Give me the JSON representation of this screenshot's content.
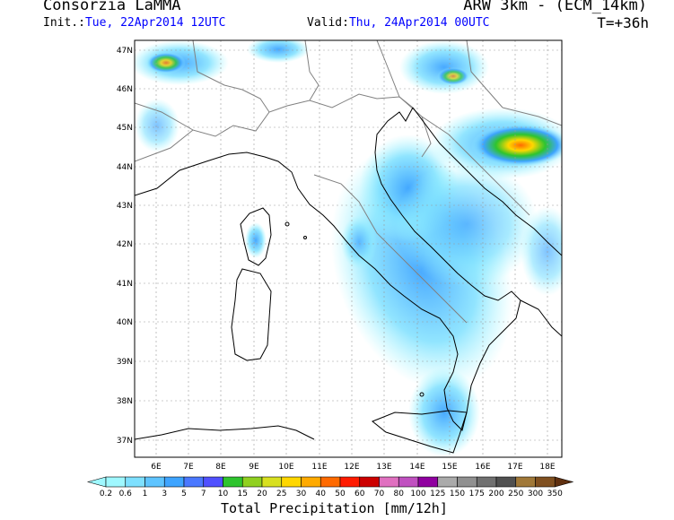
{
  "header": {
    "org": "Consorzia LaMMA",
    "model": "ARW 3km - (ECM_14km)",
    "init_prefix": "Init.:",
    "init_value": "Tue, 22Apr2014 12UTC",
    "valid_prefix": "Valid:",
    "valid_value": "Thu, 24Apr2014 00UTC",
    "lead_time": "T=+36h"
  },
  "map": {
    "lat_labels": [
      "47N",
      "46N",
      "45N",
      "44N",
      "43N",
      "42N",
      "41N",
      "40N",
      "39N",
      "38N",
      "37N"
    ],
    "lon_labels": [
      "6E",
      "7E",
      "8E",
      "9E",
      "10E",
      "11E",
      "12E",
      "13E",
      "14E",
      "15E",
      "16E",
      "17E",
      "18E"
    ],
    "sea_color": "#ffffff",
    "border_color": "#808080",
    "coast_color": "#000000"
  },
  "legend": {
    "title": "Total Precipitation [mm/12h]",
    "labels": [
      "0.2",
      "0.6",
      "1",
      "3",
      "5",
      "7",
      "10",
      "15",
      "20",
      "25",
      "30",
      "40",
      "50",
      "60",
      "70",
      "80",
      "100",
      "125",
      "150",
      "175",
      "200",
      "250",
      "300",
      "350"
    ],
    "colors": [
      "#9ff8ff",
      "#7ee0ff",
      "#5ec4ff",
      "#3ea4ff",
      "#4a78ff",
      "#5050ff",
      "#2ec42e",
      "#90d020",
      "#d8e020",
      "#ffd700",
      "#ffaa00",
      "#ff6a00",
      "#ff1a00",
      "#cc0000",
      "#e070c0",
      "#c050c0",
      "#9000a0",
      "#aaaaaa",
      "#909090",
      "#707070",
      "#505050",
      "#a07838",
      "#805020",
      "#603010"
    ]
  }
}
